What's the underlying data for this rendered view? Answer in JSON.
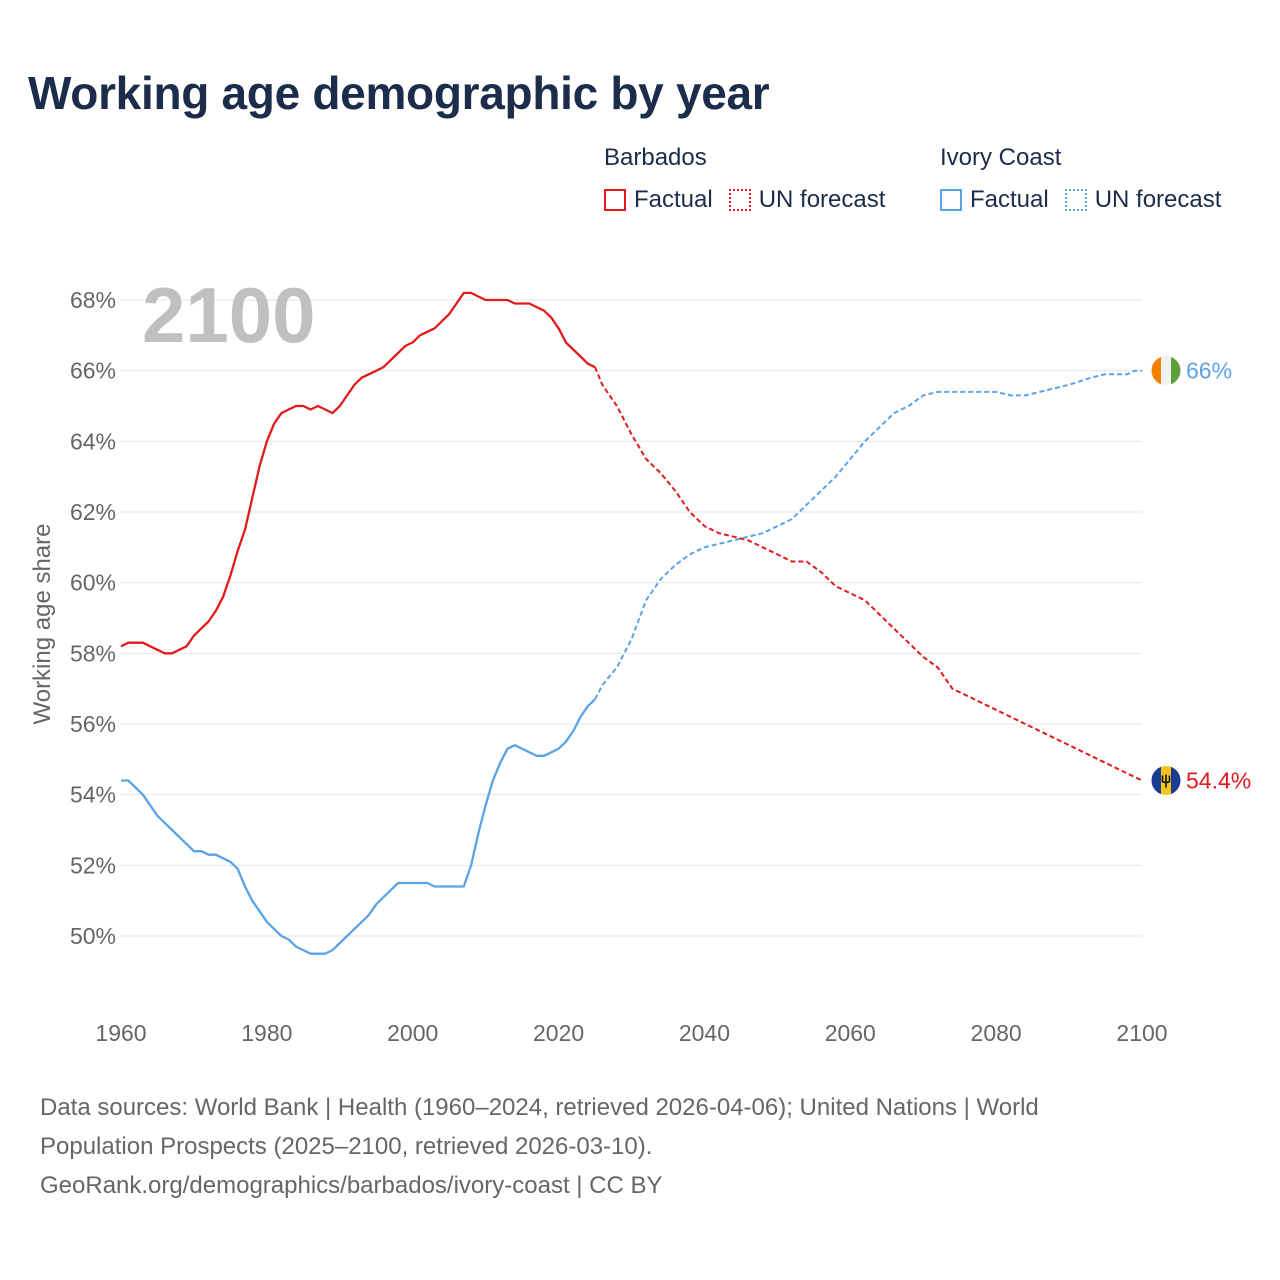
{
  "title": "Working age demographic by year",
  "legend": {
    "groups": [
      {
        "name": "Barbados",
        "color": "#e31a1c",
        "factual_label": "Factual",
        "forecast_label": "UN forecast"
      },
      {
        "name": "Ivory Coast",
        "color": "#5ba3e6",
        "factual_label": "Factual",
        "forecast_label": "UN forecast"
      }
    ]
  },
  "footer": {
    "line1": "Data sources: World Bank | Health (1960–2024, retrieved 2026-04-06); United Nations | World",
    "line2": "Population Prospects (2025–2100, retrieved 2026-03-10).",
    "line3": "GeoRank.org/demographics/barbados/ivory-coast | CC BY"
  },
  "chart_data": {
    "type": "line",
    "title": "Working age demographic by year",
    "ylabel": "Working age share",
    "xlabel": "",
    "year_watermark": "2100",
    "xlim": [
      1960,
      2100
    ],
    "ylim": [
      48.5,
      68.5
    ],
    "xticks": [
      1960,
      1980,
      2000,
      2020,
      2040,
      2060,
      2080,
      2100
    ],
    "yticks": [
      50,
      52,
      54,
      56,
      58,
      60,
      62,
      64,
      66,
      68
    ],
    "ytick_suffix": "%",
    "grid": true,
    "series": [
      {
        "name": "Barbados",
        "color": "#e31a1c",
        "end_label": "54.4%",
        "flag": "barbados",
        "factual": [
          [
            1960,
            58.2
          ],
          [
            1961,
            58.3
          ],
          [
            1963,
            58.3
          ],
          [
            1964,
            58.2
          ],
          [
            1966,
            58.0
          ],
          [
            1967,
            58.0
          ],
          [
            1968,
            58.1
          ],
          [
            1969,
            58.2
          ],
          [
            1970,
            58.5
          ],
          [
            1971,
            58.7
          ],
          [
            1972,
            58.9
          ],
          [
            1973,
            59.2
          ],
          [
            1974,
            59.6
          ],
          [
            1975,
            60.2
          ],
          [
            1976,
            60.9
          ],
          [
            1977,
            61.5
          ],
          [
            1978,
            62.4
          ],
          [
            1979,
            63.3
          ],
          [
            1980,
            64.0
          ],
          [
            1981,
            64.5
          ],
          [
            1982,
            64.8
          ],
          [
            1983,
            64.9
          ],
          [
            1984,
            65.0
          ],
          [
            1985,
            65.0
          ],
          [
            1986,
            64.9
          ],
          [
            1987,
            65.0
          ],
          [
            1988,
            64.9
          ],
          [
            1989,
            64.8
          ],
          [
            1990,
            65.0
          ],
          [
            1991,
            65.3
          ],
          [
            1992,
            65.6
          ],
          [
            1993,
            65.8
          ],
          [
            1994,
            65.9
          ],
          [
            1995,
            66.0
          ],
          [
            1996,
            66.1
          ],
          [
            1997,
            66.3
          ],
          [
            1998,
            66.5
          ],
          [
            1999,
            66.7
          ],
          [
            2000,
            66.8
          ],
          [
            2001,
            67.0
          ],
          [
            2002,
            67.1
          ],
          [
            2003,
            67.2
          ],
          [
            2004,
            67.4
          ],
          [
            2005,
            67.6
          ],
          [
            2006,
            67.9
          ],
          [
            2007,
            68.2
          ],
          [
            2008,
            68.2
          ],
          [
            2009,
            68.1
          ],
          [
            2010,
            68.0
          ],
          [
            2013,
            68.0
          ],
          [
            2014,
            67.9
          ],
          [
            2016,
            67.9
          ],
          [
            2017,
            67.8
          ],
          [
            2018,
            67.7
          ],
          [
            2019,
            67.5
          ],
          [
            2020,
            67.2
          ],
          [
            2021,
            66.8
          ],
          [
            2022,
            66.6
          ],
          [
            2023,
            66.4
          ],
          [
            2024,
            66.2
          ],
          [
            2025,
            66.1
          ]
        ],
        "forecast": [
          [
            2025,
            66.1
          ],
          [
            2026,
            65.6
          ],
          [
            2028,
            65.0
          ],
          [
            2030,
            64.2
          ],
          [
            2032,
            63.5
          ],
          [
            2034,
            63.1
          ],
          [
            2036,
            62.6
          ],
          [
            2038,
            62.0
          ],
          [
            2040,
            61.6
          ],
          [
            2042,
            61.4
          ],
          [
            2044,
            61.3
          ],
          [
            2046,
            61.2
          ],
          [
            2048,
            61.0
          ],
          [
            2050,
            60.8
          ],
          [
            2052,
            60.6
          ],
          [
            2054,
            60.6
          ],
          [
            2056,
            60.3
          ],
          [
            2058,
            59.9
          ],
          [
            2060,
            59.7
          ],
          [
            2062,
            59.5
          ],
          [
            2064,
            59.1
          ],
          [
            2066,
            58.7
          ],
          [
            2068,
            58.3
          ],
          [
            2070,
            57.9
          ],
          [
            2072,
            57.6
          ],
          [
            2074,
            57.0
          ],
          [
            2076,
            56.8
          ],
          [
            2080,
            56.4
          ],
          [
            2085,
            55.9
          ],
          [
            2090,
            55.4
          ],
          [
            2095,
            54.9
          ],
          [
            2098,
            54.6
          ],
          [
            2100,
            54.4
          ]
        ]
      },
      {
        "name": "Ivory Coast",
        "color": "#5ba3e6",
        "end_label": "66%",
        "flag": "ivory-coast",
        "factual": [
          [
            1960,
            54.4
          ],
          [
            1961,
            54.4
          ],
          [
            1962,
            54.2
          ],
          [
            1963,
            54.0
          ],
          [
            1964,
            53.7
          ],
          [
            1965,
            53.4
          ],
          [
            1966,
            53.2
          ],
          [
            1967,
            53.0
          ],
          [
            1968,
            52.8
          ],
          [
            1969,
            52.6
          ],
          [
            1970,
            52.4
          ],
          [
            1971,
            52.4
          ],
          [
            1972,
            52.3
          ],
          [
            1973,
            52.3
          ],
          [
            1974,
            52.2
          ],
          [
            1975,
            52.1
          ],
          [
            1976,
            51.9
          ],
          [
            1977,
            51.4
          ],
          [
            1978,
            51.0
          ],
          [
            1979,
            50.7
          ],
          [
            1980,
            50.4
          ],
          [
            1981,
            50.2
          ],
          [
            1982,
            50.0
          ],
          [
            1983,
            49.9
          ],
          [
            1984,
            49.7
          ],
          [
            1985,
            49.6
          ],
          [
            1986,
            49.5
          ],
          [
            1988,
            49.5
          ],
          [
            1989,
            49.6
          ],
          [
            1990,
            49.8
          ],
          [
            1991,
            50.0
          ],
          [
            1992,
            50.2
          ],
          [
            1993,
            50.4
          ],
          [
            1994,
            50.6
          ],
          [
            1995,
            50.9
          ],
          [
            1996,
            51.1
          ],
          [
            1997,
            51.3
          ],
          [
            1998,
            51.5
          ],
          [
            2002,
            51.5
          ],
          [
            2003,
            51.4
          ],
          [
            2007,
            51.4
          ],
          [
            2008,
            52.0
          ],
          [
            2009,
            52.9
          ],
          [
            2010,
            53.7
          ],
          [
            2011,
            54.4
          ],
          [
            2012,
            54.9
          ],
          [
            2013,
            55.3
          ],
          [
            2014,
            55.4
          ],
          [
            2015,
            55.3
          ],
          [
            2016,
            55.2
          ],
          [
            2017,
            55.1
          ],
          [
            2018,
            55.1
          ],
          [
            2019,
            55.2
          ],
          [
            2020,
            55.3
          ],
          [
            2021,
            55.5
          ],
          [
            2022,
            55.8
          ],
          [
            2023,
            56.2
          ],
          [
            2024,
            56.5
          ],
          [
            2025,
            56.7
          ]
        ],
        "forecast": [
          [
            2025,
            56.7
          ],
          [
            2026,
            57.1
          ],
          [
            2028,
            57.6
          ],
          [
            2030,
            58.4
          ],
          [
            2032,
            59.5
          ],
          [
            2034,
            60.1
          ],
          [
            2036,
            60.5
          ],
          [
            2038,
            60.8
          ],
          [
            2040,
            61.0
          ],
          [
            2042,
            61.1
          ],
          [
            2044,
            61.2
          ],
          [
            2046,
            61.3
          ],
          [
            2048,
            61.4
          ],
          [
            2050,
            61.6
          ],
          [
            2052,
            61.8
          ],
          [
            2054,
            62.2
          ],
          [
            2056,
            62.6
          ],
          [
            2058,
            63.0
          ],
          [
            2060,
            63.5
          ],
          [
            2062,
            64.0
          ],
          [
            2064,
            64.4
          ],
          [
            2066,
            64.8
          ],
          [
            2068,
            65.0
          ],
          [
            2070,
            65.3
          ],
          [
            2072,
            65.4
          ],
          [
            2080,
            65.4
          ],
          [
            2082,
            65.3
          ],
          [
            2084,
            65.3
          ],
          [
            2086,
            65.4
          ],
          [
            2088,
            65.5
          ],
          [
            2090,
            65.6
          ],
          [
            2093,
            65.8
          ],
          [
            2095,
            65.9
          ],
          [
            2098,
            65.9
          ],
          [
            2099,
            66.0
          ],
          [
            2100,
            66.0
          ]
        ]
      }
    ]
  }
}
